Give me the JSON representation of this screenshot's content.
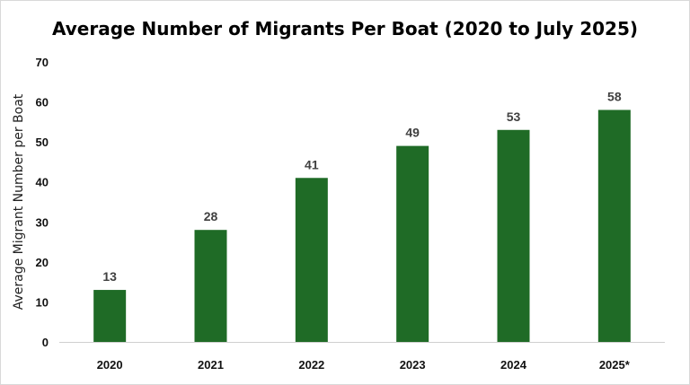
{
  "chart_data": {
    "type": "bar",
    "title": "Average Number of Migrants Per Boat (2020 to July 2025)",
    "xlabel": "",
    "ylabel": "Average Migrant Number per Boat",
    "categories": [
      "2020",
      "2021",
      "2022",
      "2023",
      "2024",
      "2025*"
    ],
    "values": [
      13,
      28,
      41,
      49,
      53,
      58
    ],
    "data_labels": [
      "13",
      "28",
      "41",
      "49",
      "53",
      "58"
    ],
    "ylim": [
      0,
      70
    ],
    "yticks": [
      "0",
      "10",
      "20",
      "30",
      "40",
      "50",
      "60",
      "70"
    ],
    "grid": false,
    "legend": "none",
    "bar_color": "#1f6b26"
  }
}
